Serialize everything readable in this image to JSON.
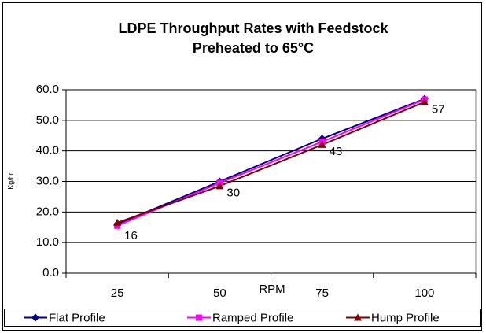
{
  "chart_data": {
    "type": "line",
    "title": "LDPE Throughput Rates with Feedstock",
    "subtitle": "Preheated to 65°C",
    "x_label": "RPM",
    "y_label": "Kg/hr",
    "categories": [
      "25",
      "50",
      "75",
      "100"
    ],
    "series": [
      {
        "name": "Flat Profile",
        "color": "#000080",
        "marker": "diamond",
        "values": [
          16,
          30,
          44,
          57
        ]
      },
      {
        "name": "Ramped Profile",
        "color": "#ff00ff",
        "marker": "square",
        "values": [
          15.5,
          29.5,
          43,
          56.8
        ],
        "value_labels": [
          "16",
          "30",
          "43",
          "57"
        ]
      },
      {
        "name": "Hump Profile",
        "color": "#800000",
        "marker": "triangle",
        "values": [
          16.5,
          28.5,
          42,
          56
        ]
      }
    ],
    "ylim": [
      0,
      60
    ],
    "yticks": [
      {
        "value": 0,
        "label": "0.0"
      },
      {
        "value": 10,
        "label": "10.0"
      },
      {
        "value": 20,
        "label": "20.0"
      },
      {
        "value": 30,
        "label": "30.0"
      },
      {
        "value": 40,
        "label": "40.0"
      },
      {
        "value": 50,
        "label": "50.0"
      },
      {
        "value": 60,
        "label": "60.0"
      }
    ],
    "grid": true,
    "legend": "bottom"
  }
}
